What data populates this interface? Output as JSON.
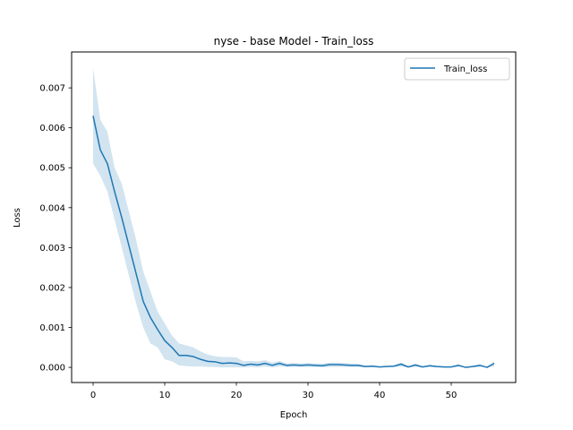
{
  "chart_data": {
    "type": "line",
    "title": "nyse - base Model - Train_loss",
    "xlabel": "Epoch",
    "ylabel": "Loss",
    "xlim": [
      -3,
      59
    ],
    "ylim": [
      -0.00038,
      0.0079
    ],
    "x_ticks": [
      0,
      10,
      20,
      30,
      40,
      50
    ],
    "x_tick_labels": [
      "0",
      "10",
      "20",
      "30",
      "40",
      "50"
    ],
    "y_ticks": [
      0.0,
      0.001,
      0.002,
      0.003,
      0.004,
      0.005,
      0.006,
      0.007
    ],
    "y_tick_labels": [
      "0.000",
      "0.001",
      "0.002",
      "0.003",
      "0.004",
      "0.005",
      "0.006",
      "0.007"
    ],
    "grid": false,
    "legend_position": "top-right",
    "series": [
      {
        "name": "Train_loss",
        "color": "#1f77b4",
        "band_color": "#1f77b4",
        "x": [
          0,
          1,
          2,
          3,
          4,
          5,
          6,
          7,
          8,
          9,
          10,
          11,
          12,
          13,
          14,
          15,
          16,
          17,
          18,
          19,
          20,
          21,
          22,
          23,
          24,
          25,
          26,
          27,
          28,
          29,
          30,
          31,
          32,
          33,
          34,
          35,
          36,
          37,
          38,
          39,
          40,
          41,
          42,
          43,
          44,
          45,
          46,
          47,
          48,
          49,
          50,
          51,
          52,
          53,
          54,
          55,
          56
        ],
        "values": [
          0.0063,
          0.00545,
          0.0051,
          0.0044,
          0.00375,
          0.00305,
          0.00235,
          0.00165,
          0.00125,
          0.00095,
          0.00067,
          0.0005,
          0.0003,
          0.0003,
          0.00027,
          0.0002,
          0.00015,
          0.00014,
          0.0001,
          0.00011,
          0.0001,
          5e-05,
          8e-05,
          6e-05,
          0.0001,
          5e-05,
          0.0001,
          5e-05,
          6e-05,
          5e-05,
          6e-05,
          5e-05,
          4e-05,
          7e-05,
          7e-05,
          6e-05,
          5e-05,
          5e-05,
          2e-05,
          3e-05,
          1e-05,
          2e-05,
          3e-05,
          8e-05,
          1e-05,
          6e-05,
          1e-05,
          4e-05,
          2e-05,
          1e-05,
          1e-05,
          5e-05,
          0.0,
          2e-05,
          5e-05,
          0.0,
          0.0001
        ],
        "lower": [
          0.0051,
          0.0048,
          0.0044,
          0.0037,
          0.003,
          0.0023,
          0.0016,
          0.001,
          0.0006,
          0.0005,
          0.0002,
          0.00015,
          5e-05,
          3e-05,
          2e-05,
          2e-05,
          1e-05,
          1e-05,
          0.0,
          0.0,
          0.0,
          0.0,
          1e-05,
          0.0,
          2e-05,
          0.0,
          2e-05,
          1e-05,
          1e-05,
          1e-05,
          1e-05,
          1e-05,
          0.0,
          1e-05,
          1e-05,
          1e-05,
          1e-05,
          1e-05,
          0.0,
          1e-05,
          0.0,
          1e-05,
          1e-05,
          2e-05,
          0.0,
          1e-05,
          0.0,
          1e-05,
          0.0,
          0.0,
          0.0,
          1e-05,
          0.0,
          0.0,
          1e-05,
          0.0,
          2e-05
        ],
        "upper": [
          0.0075,
          0.0062,
          0.0059,
          0.005,
          0.0046,
          0.0039,
          0.0032,
          0.0024,
          0.0019,
          0.0014,
          0.0011,
          0.0008,
          0.0006,
          0.00055,
          0.0005,
          0.0004,
          0.00032,
          0.00028,
          0.00026,
          0.00026,
          0.00025,
          0.00015,
          0.00016,
          0.00015,
          0.00018,
          0.00012,
          0.00016,
          0.0001,
          0.00011,
          0.0001,
          0.00011,
          0.0001,
          9e-05,
          0.00012,
          0.00012,
          0.00011,
          0.0001,
          9e-05,
          4e-05,
          5e-05,
          2e-05,
          3e-05,
          5e-05,
          0.00012,
          2e-05,
          9e-05,
          2e-05,
          6e-05,
          3e-05,
          2e-05,
          2e-05,
          8e-05,
          0.0,
          3e-05,
          8e-05,
          0.0,
          0.00015
        ]
      }
    ]
  }
}
